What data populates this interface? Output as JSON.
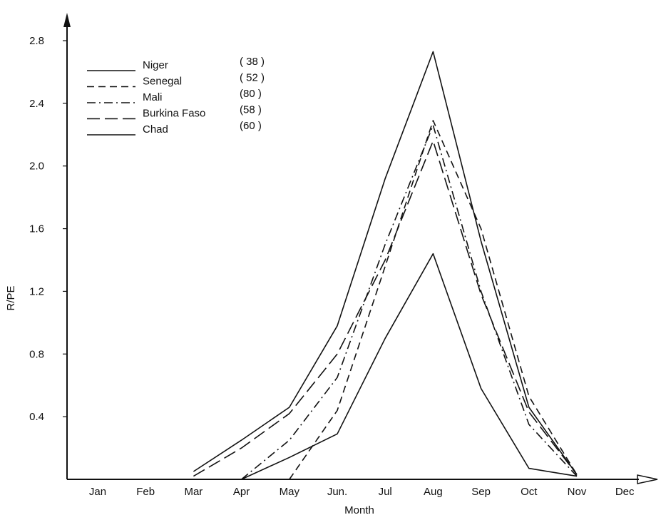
{
  "chart_data": {
    "type": "line",
    "xlabel": "Month",
    "ylabel": "R/PE",
    "categories": [
      "Jan",
      "Feb",
      "Mar",
      "Apr",
      "May",
      "Jun.",
      "Jul",
      "Aug",
      "Sep",
      "Oct",
      "Nov",
      "Dec"
    ],
    "ylim": [
      0,
      2.8
    ],
    "yticks": [
      "2.8",
      "2.4",
      "2.0",
      "1.6",
      "1.2",
      "0.8",
      "0.4"
    ],
    "grid": false,
    "legend_position": "top-left",
    "series": [
      {
        "name": "Niger",
        "note": "( 38 )",
        "dash": "solid",
        "values": [
          null,
          null,
          null,
          0.0,
          0.14,
          0.29,
          0.9,
          1.44,
          0.58,
          0.07,
          0.02,
          null
        ]
      },
      {
        "name": "Senegal",
        "note": "( 52 )",
        "dash": "dashed",
        "values": [
          null,
          null,
          null,
          null,
          0.0,
          0.44,
          1.36,
          2.29,
          1.6,
          0.53,
          0.03,
          null
        ]
      },
      {
        "name": "Mali",
        "note": "(80 )",
        "dash": "dashdot",
        "values": [
          null,
          null,
          null,
          0.0,
          0.25,
          0.65,
          1.5,
          2.26,
          1.2,
          0.35,
          0.02,
          null
        ]
      },
      {
        "name": "Burkina Faso",
        "note": "(58 )",
        "dash": "longdash",
        "values": [
          null,
          null,
          0.02,
          0.2,
          0.42,
          0.8,
          1.4,
          2.16,
          1.18,
          0.43,
          0.03,
          null
        ]
      },
      {
        "name": "Chad",
        "note": "(60 )",
        "dash": "solid",
        "values": [
          null,
          null,
          0.05,
          0.25,
          0.46,
          0.98,
          1.92,
          2.73,
          1.52,
          0.46,
          0.03,
          null
        ]
      }
    ]
  }
}
